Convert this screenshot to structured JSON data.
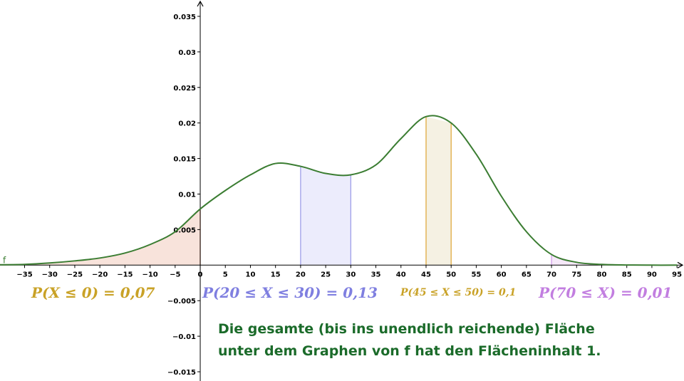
{
  "chart_data": {
    "type": "line",
    "function_name": "f",
    "xlim": [
      -39.9,
      96.4
    ],
    "ylim": [
      -0.0163,
      0.0373
    ],
    "xticks": [
      {
        "value": -35,
        "label": "−35"
      },
      {
        "value": -30,
        "label": "−30"
      },
      {
        "value": -25,
        "label": "−25"
      },
      {
        "value": -20,
        "label": "−20"
      },
      {
        "value": -15,
        "label": "−15"
      },
      {
        "value": -10,
        "label": "−10"
      },
      {
        "value": -5,
        "label": "−5"
      },
      0,
      5,
      10,
      15,
      20,
      25,
      30,
      35,
      40,
      45,
      50,
      55,
      60,
      65,
      70,
      75,
      80,
      85,
      90,
      95
    ],
    "yticks": [
      {
        "value": -0.015,
        "label": "−0.015"
      },
      {
        "value": -0.01,
        "label": "−0.01"
      },
      {
        "value": -0.005,
        "label": "−0.005"
      },
      0.005,
      0.01,
      0.015,
      0.02,
      0.025,
      0.03,
      0.035
    ],
    "series": [
      {
        "name": "f",
        "color": "#3b7d32",
        "x": [
          -40,
          -35,
          -30,
          -25,
          -20,
          -15,
          -10,
          -5,
          0,
          5,
          10,
          15,
          20,
          25,
          30,
          35,
          40,
          45,
          50,
          55,
          60,
          65,
          70,
          75,
          80,
          85,
          90,
          95
        ],
        "values": [
          5e-05,
          0.0001,
          0.0003,
          0.0006,
          0.001,
          0.0017,
          0.0029,
          0.0047,
          0.0079,
          0.0105,
          0.0127,
          0.0143,
          0.0139,
          0.0129,
          0.0127,
          0.0141,
          0.0178,
          0.0209,
          0.02,
          0.0156,
          0.0097,
          0.0047,
          0.0015,
          0.0004,
          0.0001,
          2e-05,
          0,
          0
        ]
      }
    ],
    "regions": [
      {
        "from": null,
        "to": 0,
        "value": 0.07,
        "label": "P(X ≤ 0) = 0,07",
        "color": "#c9a227",
        "fill": "#f6dcd2",
        "stroke": "#e2906f"
      },
      {
        "from": 20,
        "to": 30,
        "value": 0.13,
        "label": "P(20 ≤ X ≤ 30) = 0,13",
        "color": "#7f7fe0",
        "fill": "#e7e7fb",
        "stroke": "#9f9fe8"
      },
      {
        "from": 45,
        "to": 50,
        "value": 0.1,
        "label": "P(45 ≤ X ≤ 50) = 0,1",
        "color": "#c9a227",
        "fill": "#f3eedc",
        "stroke": "#e0aa40"
      },
      {
        "from": 70,
        "to": null,
        "value": 0.01,
        "label": "P(70 ≤ X) = 0,01",
        "color": "#c27ee0",
        "fill": "#f4e4f8",
        "stroke": "#d29be8"
      }
    ],
    "annotations": [
      "Die gesamte (bis ins unendlich reichende) Fläche",
      "unter dem Graphen von f hat den Flächeninhalt 1."
    ]
  }
}
